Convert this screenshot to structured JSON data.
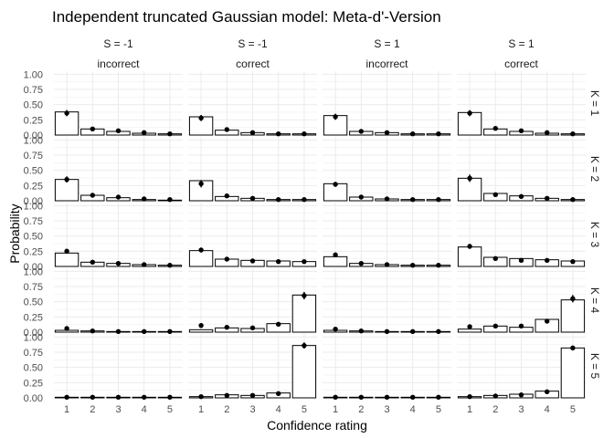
{
  "chart_data": {
    "type": "bar",
    "title": "Independent truncated Gaussian model: Meta-d'-Version",
    "xlabel": "Confidence rating",
    "ylabel": "Probability",
    "x_ticks": [
      "1",
      "2",
      "3",
      "4",
      "5"
    ],
    "y_ticks": [
      "0.00",
      "0.25",
      "0.50",
      "0.75",
      "1.00"
    ],
    "ylim": [
      0,
      1.05
    ],
    "grid": true,
    "colors": {
      "bar_fill": "#ffffff",
      "bar_stroke": "#000000",
      "point": "#000000",
      "panel_grid": "#ebebeb",
      "text": "#4d4d4d"
    },
    "column_headers": [
      {
        "s": "S = -1",
        "accuracy": "incorrect"
      },
      {
        "s": "S = -1",
        "accuracy": "correct"
      },
      {
        "s": "S = 1",
        "accuracy": "incorrect"
      },
      {
        "s": "S = 1",
        "accuracy": "correct"
      }
    ],
    "row_labels": [
      "K = 1",
      "K = 2",
      "K = 3",
      "K = 4",
      "K = 5"
    ],
    "panels": [
      [
        {
          "bars": [
            0.38,
            0.1,
            0.06,
            0.03,
            0.02
          ],
          "points": [
            0.36,
            0.1,
            0.07,
            0.04,
            0.02
          ],
          "errors": [
            0.05,
            0.02,
            0.02,
            0.01,
            0.01
          ]
        },
        {
          "bars": [
            0.3,
            0.08,
            0.04,
            0.02,
            0.02
          ],
          "points": [
            0.28,
            0.09,
            0.04,
            0.02,
            0.02
          ],
          "errors": [
            0.05,
            0.02,
            0.01,
            0.01,
            0.01
          ]
        },
        {
          "bars": [
            0.32,
            0.06,
            0.04,
            0.02,
            0.02
          ],
          "points": [
            0.3,
            0.06,
            0.04,
            0.02,
            0.02
          ],
          "errors": [
            0.05,
            0.02,
            0.01,
            0.01,
            0.01
          ]
        },
        {
          "bars": [
            0.37,
            0.1,
            0.06,
            0.03,
            0.02
          ],
          "points": [
            0.36,
            0.11,
            0.07,
            0.04,
            0.02
          ],
          "errors": [
            0.05,
            0.02,
            0.02,
            0.01,
            0.01
          ]
        }
      ],
      [
        {
          "bars": [
            0.35,
            0.09,
            0.05,
            0.02,
            0.01
          ],
          "points": [
            0.35,
            0.09,
            0.06,
            0.03,
            0.02
          ],
          "errors": [
            0.05,
            0.02,
            0.02,
            0.01,
            0.01
          ]
        },
        {
          "bars": [
            0.33,
            0.07,
            0.04,
            0.02,
            0.02
          ],
          "points": [
            0.28,
            0.08,
            0.04,
            0.02,
            0.02
          ],
          "errors": [
            0.06,
            0.02,
            0.01,
            0.01,
            0.01
          ]
        },
        {
          "bars": [
            0.28,
            0.06,
            0.03,
            0.02,
            0.02
          ],
          "points": [
            0.27,
            0.06,
            0.03,
            0.02,
            0.02
          ],
          "errors": [
            0.04,
            0.02,
            0.01,
            0.01,
            0.01
          ]
        },
        {
          "bars": [
            0.37,
            0.12,
            0.08,
            0.04,
            0.02
          ],
          "points": [
            0.37,
            0.1,
            0.07,
            0.04,
            0.02
          ],
          "errors": [
            0.06,
            0.02,
            0.02,
            0.01,
            0.01
          ]
        }
      ],
      [
        {
          "bars": [
            0.22,
            0.07,
            0.05,
            0.03,
            0.02
          ],
          "points": [
            0.25,
            0.07,
            0.05,
            0.03,
            0.02
          ],
          "errors": [
            0.04,
            0.02,
            0.02,
            0.01,
            0.01
          ]
        },
        {
          "bars": [
            0.26,
            0.12,
            0.1,
            0.09,
            0.08
          ],
          "points": [
            0.27,
            0.12,
            0.09,
            0.08,
            0.08
          ],
          "errors": [
            0.04,
            0.02,
            0.02,
            0.02,
            0.02
          ]
        },
        {
          "bars": [
            0.16,
            0.05,
            0.03,
            0.02,
            0.02
          ],
          "points": [
            0.19,
            0.05,
            0.03,
            0.02,
            0.02
          ],
          "errors": [
            0.04,
            0.02,
            0.01,
            0.01,
            0.01
          ]
        },
        {
          "bars": [
            0.32,
            0.15,
            0.13,
            0.11,
            0.09
          ],
          "points": [
            0.33,
            0.13,
            0.1,
            0.1,
            0.08
          ],
          "errors": [
            0.04,
            0.02,
            0.02,
            0.02,
            0.02
          ]
        }
      ],
      [
        {
          "bars": [
            0.03,
            0.02,
            0.01,
            0.01,
            0.01
          ],
          "points": [
            0.06,
            0.02,
            0.01,
            0.01,
            0.01
          ],
          "errors": [
            0.02,
            0.01,
            0.01,
            0.01,
            0.01
          ]
        },
        {
          "bars": [
            0.04,
            0.07,
            0.06,
            0.14,
            0.61
          ],
          "points": [
            0.11,
            0.08,
            0.07,
            0.13,
            0.6
          ],
          "errors": [
            0.04,
            0.02,
            0.02,
            0.03,
            0.06
          ]
        },
        {
          "bars": [
            0.03,
            0.02,
            0.01,
            0.01,
            0.01
          ],
          "points": [
            0.05,
            0.02,
            0.01,
            0.01,
            0.01
          ],
          "errors": [
            0.02,
            0.01,
            0.01,
            0.01,
            0.01
          ]
        },
        {
          "bars": [
            0.05,
            0.1,
            0.08,
            0.21,
            0.53
          ],
          "points": [
            0.09,
            0.1,
            0.1,
            0.18,
            0.55
          ],
          "errors": [
            0.03,
            0.02,
            0.02,
            0.03,
            0.06
          ]
        }
      ],
      [
        {
          "bars": [
            0.01,
            0.01,
            0.01,
            0.01,
            0.01
          ],
          "points": [
            0.01,
            0.01,
            0.01,
            0.01,
            0.01
          ],
          "errors": [
            0.01,
            0.01,
            0.01,
            0.01,
            0.01
          ]
        },
        {
          "bars": [
            0.02,
            0.05,
            0.04,
            0.08,
            0.86
          ],
          "points": [
            0.02,
            0.04,
            0.04,
            0.07,
            0.86
          ],
          "errors": [
            0.01,
            0.02,
            0.02,
            0.02,
            0.05
          ]
        },
        {
          "bars": [
            0.01,
            0.01,
            0.01,
            0.01,
            0.01
          ],
          "points": [
            0.01,
            0.01,
            0.01,
            0.01,
            0.01
          ],
          "errors": [
            0.01,
            0.01,
            0.01,
            0.01,
            0.01
          ]
        },
        {
          "bars": [
            0.02,
            0.04,
            0.06,
            0.11,
            0.82
          ],
          "points": [
            0.02,
            0.03,
            0.05,
            0.1,
            0.82
          ],
          "errors": [
            0.01,
            0.01,
            0.02,
            0.02,
            0.04
          ]
        }
      ]
    ]
  }
}
